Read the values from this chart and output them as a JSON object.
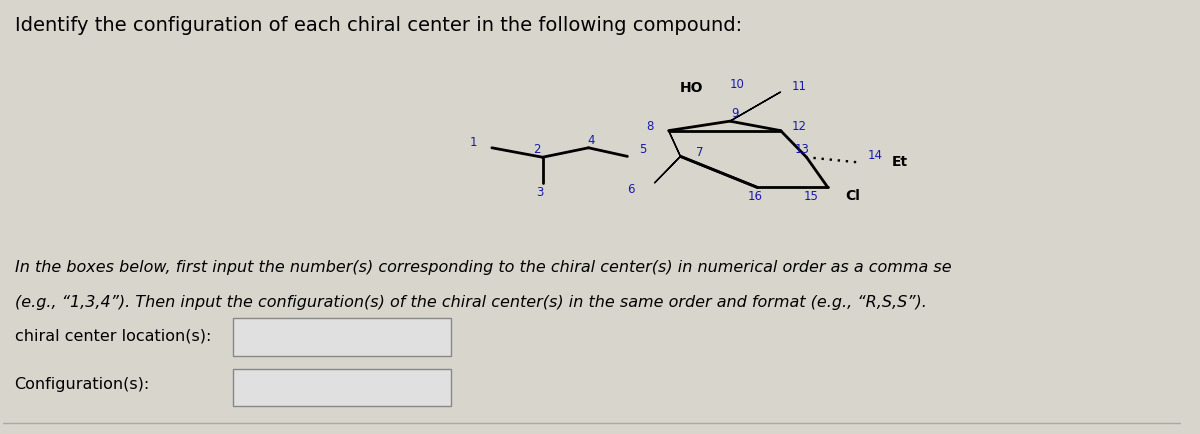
{
  "title": "Identify the configuration of each chiral center in the following compound:",
  "title_fontsize": 14,
  "background_color": "#d8d5cc",
  "text_color": "#000000",
  "molecule_color": "#000000",
  "label_color": "#1a1aaa",
  "body_text1": "In the boxes below, first input the number(s) corresponding to the chiral center(s) in numerical order as a comma se",
  "body_text2": "(e.g., “1,3,4”). Then input the configuration(s) of the chiral center(s) in the same order and format (e.g., “R,S,S”).",
  "label1": "chiral center location(s):",
  "label2": "Configuration(s):"
}
